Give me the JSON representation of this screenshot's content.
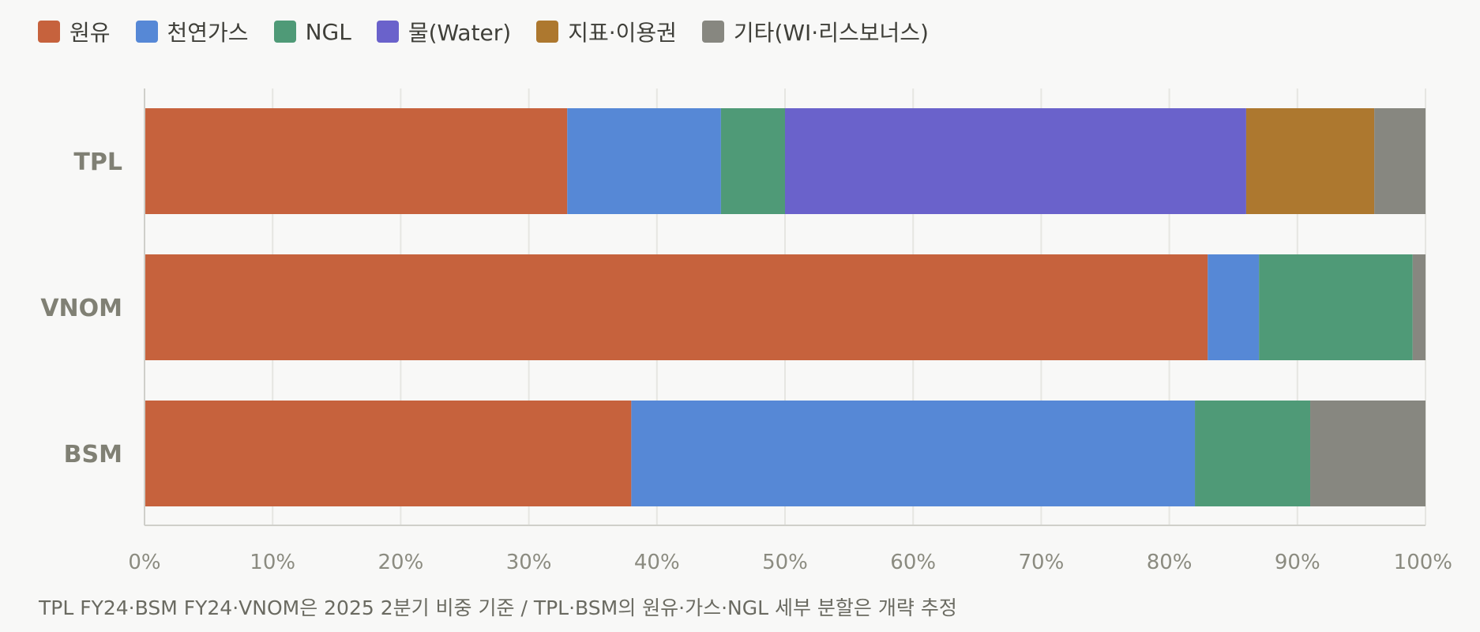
{
  "chart_data": {
    "type": "bar",
    "orientation": "horizontal",
    "stacked": true,
    "categories": [
      "TPL",
      "VNOM",
      "BSM"
    ],
    "series": [
      {
        "name": "원유",
        "color": "#c6623d",
        "values": [
          33,
          83,
          38
        ]
      },
      {
        "name": "천연가스",
        "color": "#5688d6",
        "values": [
          12,
          4,
          44
        ]
      },
      {
        "name": "NGL",
        "color": "#4f9a77",
        "values": [
          5,
          12,
          9
        ]
      },
      {
        "name": "물(Water)",
        "color": "#6a62cb",
        "values": [
          36,
          0,
          0
        ]
      },
      {
        "name": "지표·이용권",
        "color": "#ad782f",
        "values": [
          10,
          0,
          0
        ]
      },
      {
        "name": "기타(WI·리스보너스)",
        "color": "#878780",
        "values": [
          4,
          1,
          9
        ]
      }
    ],
    "xlim": [
      0,
      100
    ],
    "x_ticks": [
      "0%",
      "10%",
      "20%",
      "30%",
      "40%",
      "50%",
      "60%",
      "70%",
      "80%",
      "90%",
      "100%"
    ],
    "grid": true,
    "legend": "top-left",
    "footnote": "TPL FY24·BSM FY24·VNOM은 2025 2분기 비중 기준 / TPL·BSM의 원유·가스·NGL 세부 분할은 개략 추정"
  }
}
